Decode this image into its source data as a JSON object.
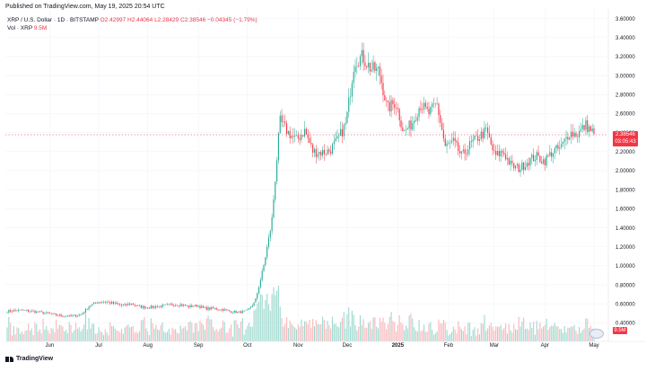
{
  "header": {
    "published": "Published on TradingView.com, May 19, 2025 20:54 UTC"
  },
  "legend": {
    "symbol": "XRP / U.S. Dollar · 1D · BITSTAMP",
    "open": "O2.42997",
    "high": "H2.44064",
    "low": "L2.28429",
    "close": "C2.38546",
    "change": "−0.04345 (−1.79%)",
    "vol_label": "Vol · XRP",
    "vol_value": "9.5M"
  },
  "price_badge": {
    "price": "2.38546",
    "countdown": "03:05:43"
  },
  "vol_badge": "9.5M",
  "footer": {
    "brand": "TradingView"
  },
  "colors": {
    "up": "#22ab94",
    "down": "#f23645",
    "up_volume": "#9fd9cf",
    "down_volume": "#f9b8bd",
    "grid": "#f0f3fa"
  },
  "chart_data": {
    "type": "candlestick",
    "y_axis_ticks": [
      "3.60000",
      "3.40000",
      "3.20000",
      "3.00000",
      "2.80000",
      "2.60000",
      "2.40000",
      "2.20000",
      "2.00000",
      "1.80000",
      "1.60000",
      "1.40000",
      "1.20000",
      "1.00000",
      "0.80000",
      "0.60000",
      "0.40000"
    ],
    "ylim": [
      0.28,
      3.7
    ],
    "x_axis_ticks": [
      "Jun",
      "Jul",
      "Aug",
      "Sep",
      "Oct",
      "Nov",
      "Dec",
      "2025",
      "Feb",
      "Mar",
      "Apr",
      "May"
    ],
    "last_price": 2.38546,
    "weekly_close": [
      0.52,
      0.53,
      0.53,
      0.52,
      0.51,
      0.5,
      0.48,
      0.47,
      0.47,
      0.49,
      0.58,
      0.62,
      0.62,
      0.6,
      0.58,
      0.6,
      0.57,
      0.56,
      0.57,
      0.58,
      0.59,
      0.59,
      0.57,
      0.58,
      0.55,
      0.55,
      0.54,
      0.52,
      0.51,
      0.52,
      0.62,
      0.98,
      1.45,
      2.52,
      2.4,
      2.32,
      2.42,
      2.2,
      2.19,
      2.21,
      2.32,
      2.5,
      3.15,
      3.2,
      3.07,
      3.05,
      2.65,
      2.72,
      2.4,
      2.5,
      2.7,
      2.6,
      2.7,
      2.25,
      2.3,
      2.15,
      2.27,
      2.35,
      2.42,
      2.15,
      2.2,
      2.05,
      2.02,
      2.1,
      2.15,
      2.1,
      2.2,
      2.24,
      2.4,
      2.38,
      2.48,
      2.39
    ]
  }
}
